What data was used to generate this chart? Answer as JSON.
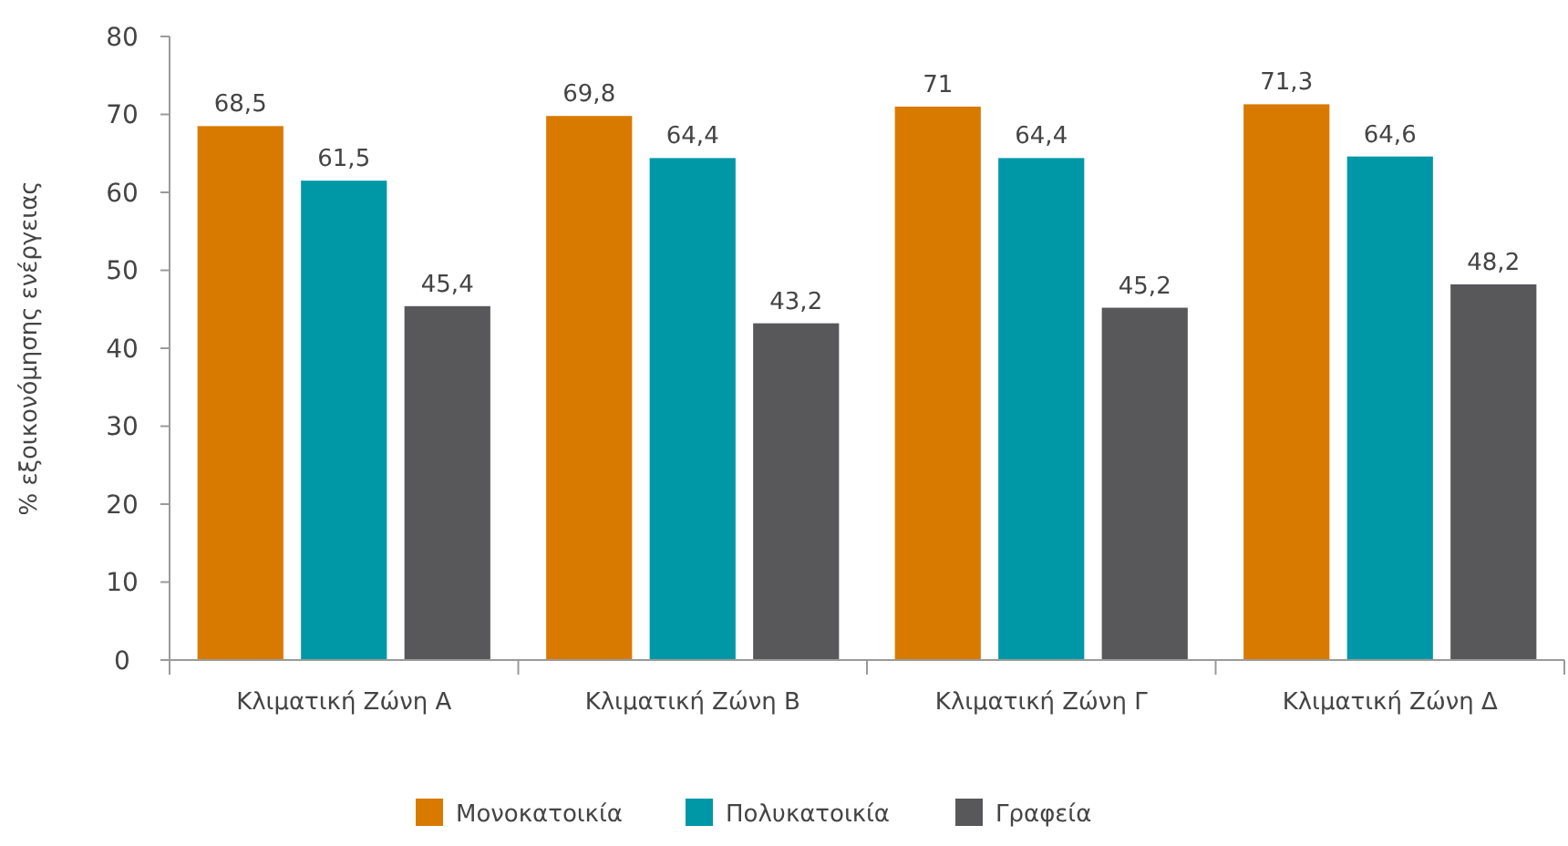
{
  "chart_data": {
    "type": "bar",
    "ylabel": "% εξοικονόμησης ενέργειας",
    "categories": [
      "Κλιματική Ζώνη Α",
      "Κλιματική Ζώνη Β",
      "Κλιματική Ζώνη Γ",
      "Κλιματική Ζώνη Δ"
    ],
    "series": [
      {
        "name": "Μονοκατοικία",
        "color": "#d97a00",
        "values": [
          68.5,
          69.8,
          71,
          71.3
        ],
        "value_labels": [
          "68,5",
          "69,8",
          "71",
          "71,3"
        ]
      },
      {
        "name": "Πολυκατοικία",
        "color": "#0097a7",
        "values": [
          61.5,
          64.4,
          64.4,
          64.6
        ],
        "value_labels": [
          "61,5",
          "64,4",
          "64,4",
          "64,6"
        ]
      },
      {
        "name": "Γραφεία",
        "color": "#58585a",
        "values": [
          45.4,
          43.2,
          45.2,
          48.2
        ],
        "value_labels": [
          "45,4",
          "43,2",
          "45,2",
          "48,2"
        ]
      }
    ],
    "ylim": [
      0,
      80
    ],
    "yticks": [
      0,
      10,
      20,
      30,
      40,
      50,
      60,
      70,
      80
    ],
    "grid": false,
    "legend": "bottom"
  }
}
